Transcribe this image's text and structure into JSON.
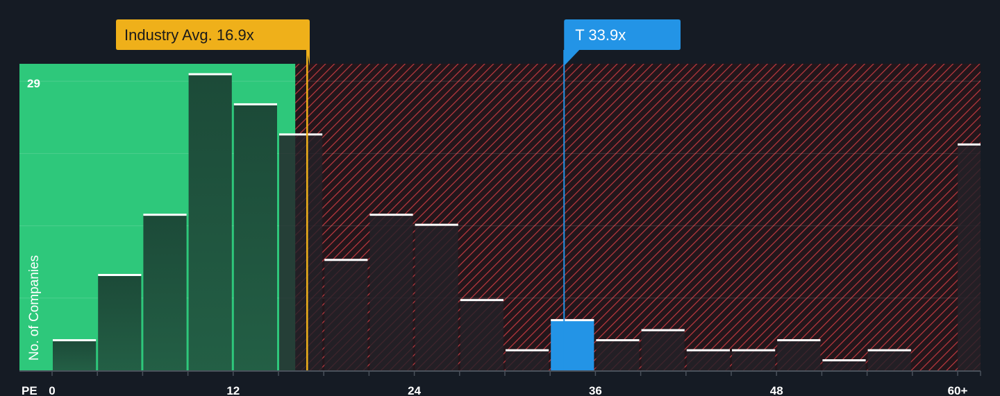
{
  "chart_data": {
    "type": "bar",
    "xlabel": "PE",
    "ylabel": "No. of Companies",
    "y_max_label": "29",
    "ylim": [
      0,
      29
    ],
    "x_tick_labels": [
      {
        "value": 0,
        "label": "0"
      },
      {
        "value": 12,
        "label": "12"
      },
      {
        "value": 24,
        "label": "24"
      },
      {
        "value": 36,
        "label": "36"
      },
      {
        "value": 48,
        "label": "48"
      },
      {
        "value": 60,
        "label": "60+"
      }
    ],
    "bin_width": 3,
    "bars": [
      {
        "x0": 0,
        "value": 3
      },
      {
        "x0": 3,
        "value": 9.5
      },
      {
        "x0": 6,
        "value": 15.5
      },
      {
        "x0": 9,
        "value": 29.5
      },
      {
        "x0": 12,
        "value": 26.5
      },
      {
        "x0": 15,
        "value": 23.5
      },
      {
        "x0": 18,
        "value": 11
      },
      {
        "x0": 21,
        "value": 15.5
      },
      {
        "x0": 24,
        "value": 14.5
      },
      {
        "x0": 27,
        "value": 7
      },
      {
        "x0": 30,
        "value": 2
      },
      {
        "x0": 33,
        "value": 5,
        "highlight": true
      },
      {
        "x0": 36,
        "value": 3
      },
      {
        "x0": 39,
        "value": 4
      },
      {
        "x0": 42,
        "value": 2
      },
      {
        "x0": 45,
        "value": 2
      },
      {
        "x0": 48,
        "value": 3
      },
      {
        "x0": 51,
        "value": 1
      },
      {
        "x0": 54,
        "value": 2
      },
      {
        "x0": 60,
        "value": 22.5
      }
    ],
    "industry_avg": {
      "value": 16.9,
      "label": "Industry Avg. 16.9x"
    },
    "company": {
      "value": 33.9,
      "label": "T 33.9x"
    },
    "grid": true,
    "colors": {
      "background": "#151b24",
      "good_zone": "#2ec87b",
      "bar_good": "#1e5740",
      "bar_bad": "#232128",
      "hatch": "#c0393f",
      "highlight_bar": "#2394e6",
      "industry_marker": "#efb01a",
      "bar_cap": "#ffffff",
      "text": "#ffffff"
    }
  }
}
